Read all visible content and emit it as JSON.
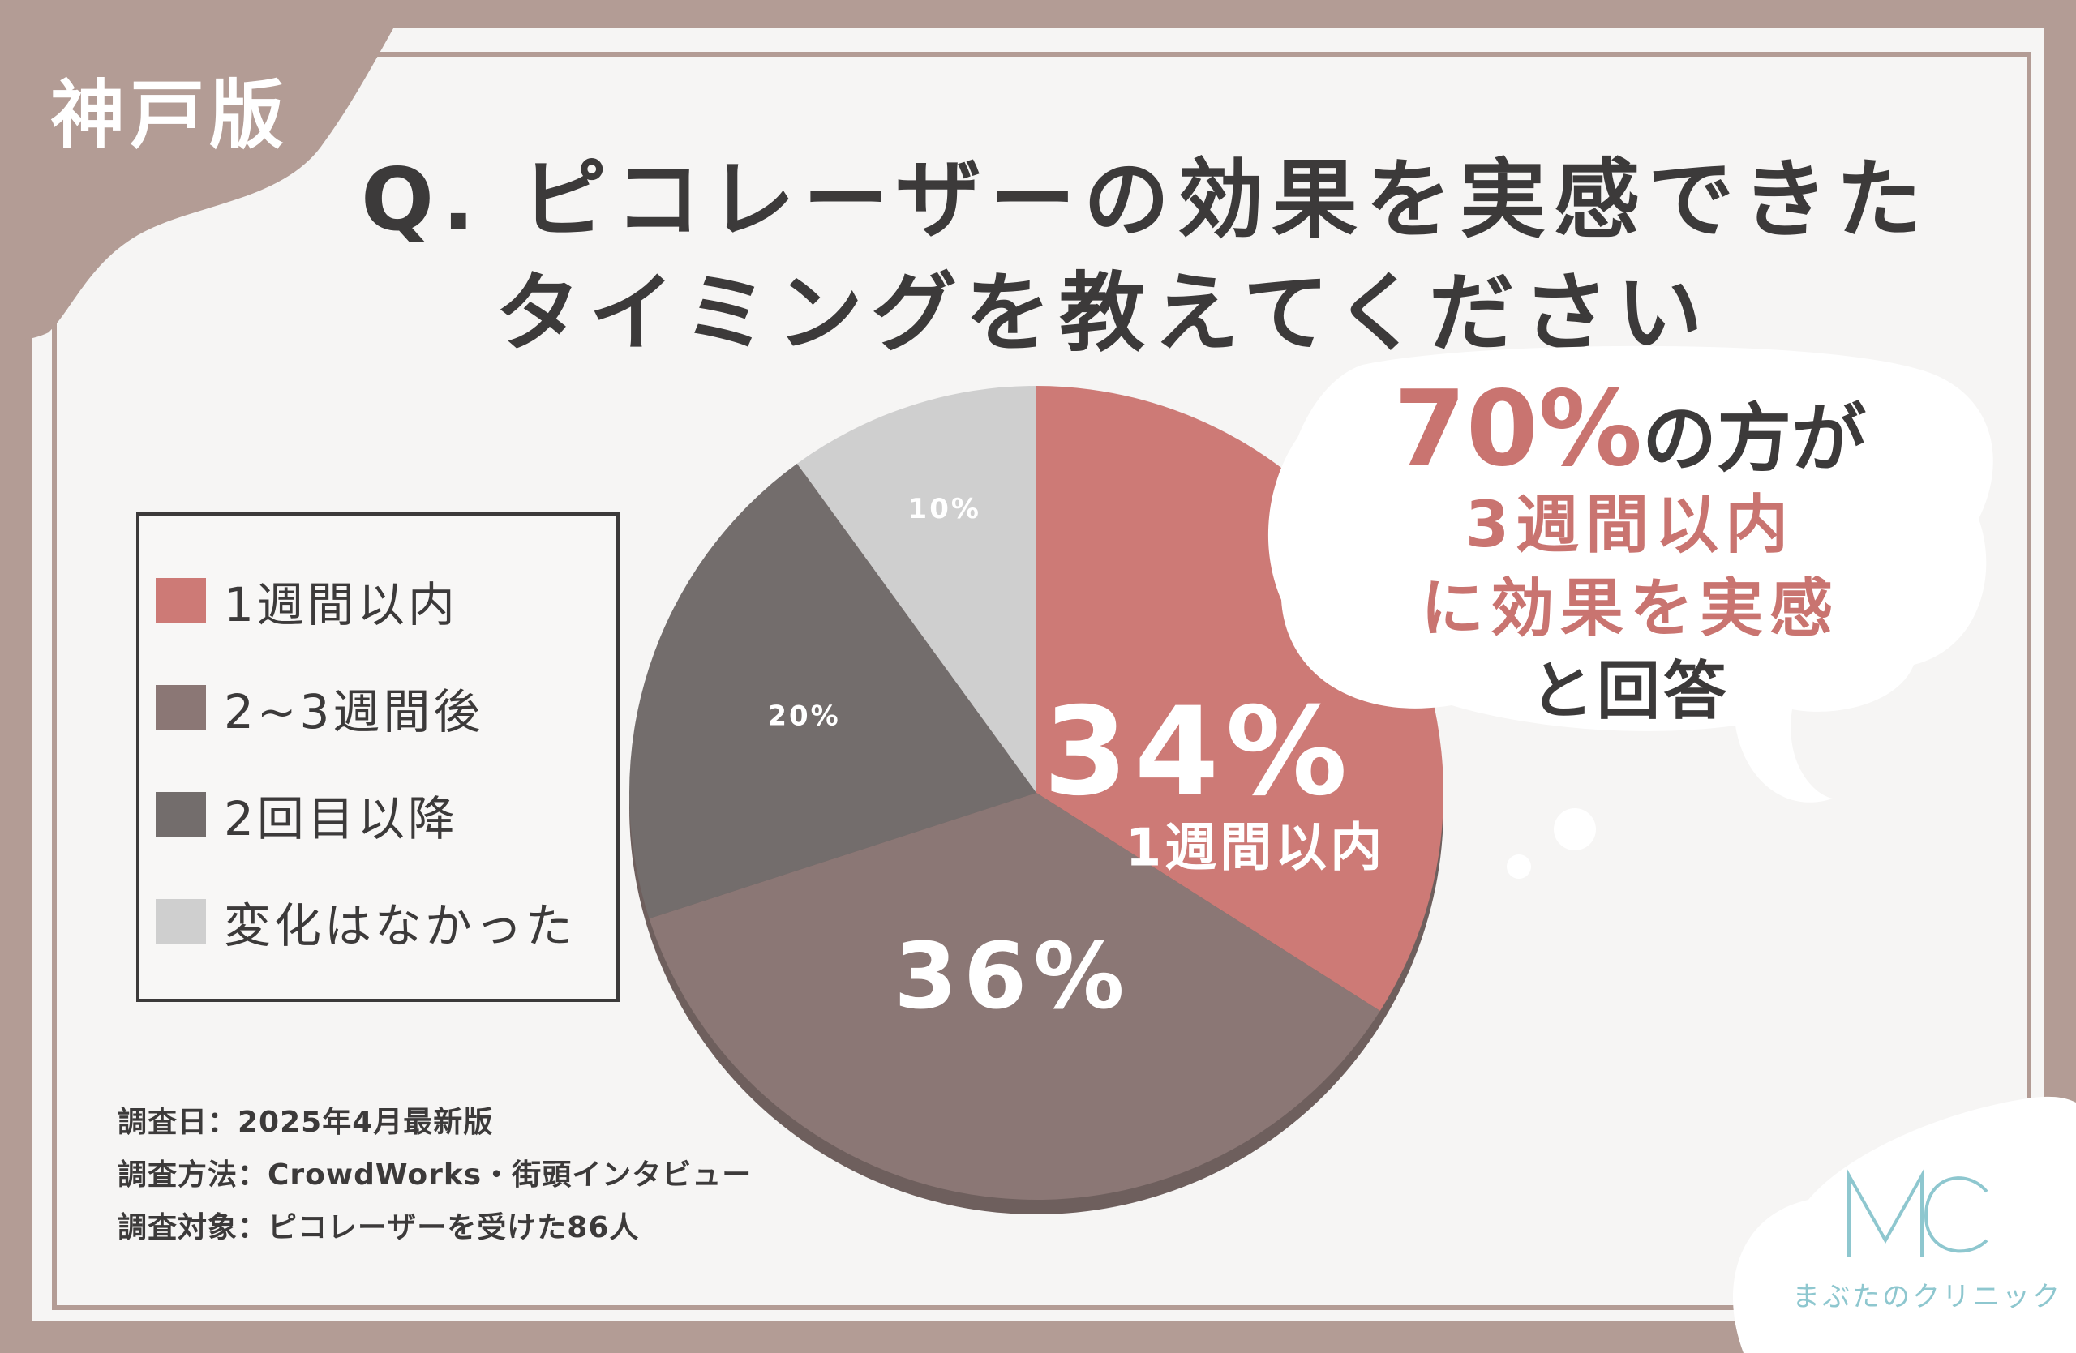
{
  "region_label": "神戸版",
  "question": {
    "line1": "Q. ピコレーザーの効果を実感できた",
    "line2": "タイミングを教えてください"
  },
  "colors": {
    "frame": "#b39c95",
    "within_1_week": "#cd7a76",
    "after_2_3_weeks": "#8b7775",
    "after_2nd_session": "#736d6c",
    "no_change": "#cfcfcf",
    "accent_text": "#c97470",
    "logo": "#8ec7cf"
  },
  "legend": [
    "1週間以内",
    "2~3週間後",
    "2回目以降",
    "変化はなかった"
  ],
  "chart_data": {
    "type": "pie",
    "categories": [
      "1週間以内",
      "2~3週間後",
      "2回目以降",
      "変化はなかった"
    ],
    "values": [
      34,
      36,
      20,
      10
    ],
    "data_labels": [
      "34%",
      "36%",
      "20%",
      "10%"
    ],
    "highlight_label": "1週間以内",
    "legend_position": "left"
  },
  "callout": {
    "highlight": "70%",
    "line1_rest": "の方が",
    "line2": "3週間以内",
    "line3": "に効果を実感",
    "line4": "と回答"
  },
  "survey_notes": [
    "調査日：2025年4月最新版",
    "調査方法：CrowdWorks・街頭インタビュー",
    "調査対象：ピコレーザーを受けた86人"
  ],
  "logo": {
    "mark": "MC",
    "name": "まぶたのクリニック"
  }
}
